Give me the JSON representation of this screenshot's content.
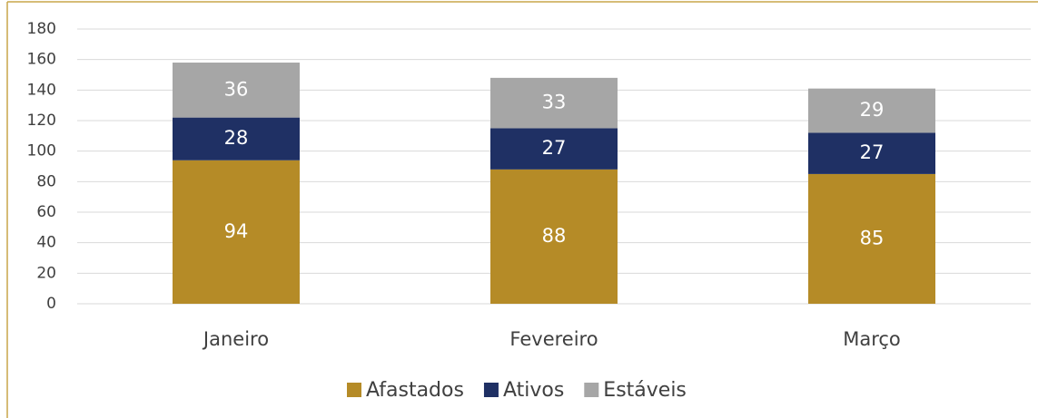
{
  "chart_data": {
    "type": "stacked_bar",
    "categories": [
      "Janeiro",
      "Fevereiro",
      "Março"
    ],
    "series": [
      {
        "name": "Afastados",
        "color": "#b58b27",
        "values": [
          94,
          88,
          85
        ]
      },
      {
        "name": "Ativos",
        "color": "#1f3064",
        "values": [
          28,
          27,
          27
        ]
      },
      {
        "name": "Estáveis",
        "color": "#a6a6a6",
        "values": [
          36,
          33,
          29
        ]
      }
    ],
    "ylim": [
      0,
      180
    ],
    "yticks": [
      0,
      20,
      40,
      60,
      80,
      100,
      120,
      140,
      160,
      180
    ],
    "grid": true,
    "legend": "bottom"
  }
}
